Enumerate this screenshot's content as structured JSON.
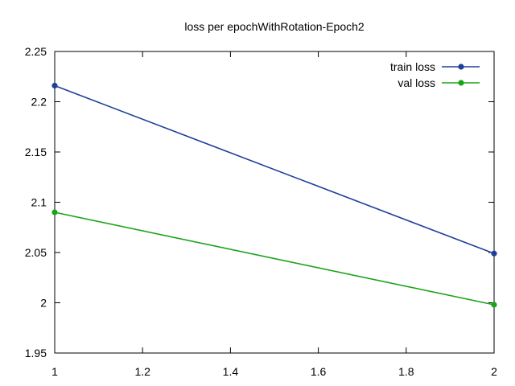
{
  "chart_data": {
    "type": "line",
    "title": "loss per epochWithRotation-Epoch2",
    "xlabel": "",
    "ylabel": "",
    "xlim": [
      1,
      2
    ],
    "ylim": [
      1.95,
      2.25
    ],
    "xticks": [
      1,
      1.2,
      1.4,
      1.6,
      1.8,
      2
    ],
    "xtick_labels": [
      "1",
      "1.2",
      "1.4",
      "1.6",
      "1.8",
      "2"
    ],
    "yticks": [
      1.95,
      2,
      2.05,
      2.1,
      2.15,
      2.2,
      2.25
    ],
    "ytick_labels": [
      "1.95",
      "2",
      "2.05",
      "2.1",
      "2.15",
      "2.2",
      "2.25"
    ],
    "grid": false,
    "legend_position": "top-right",
    "series": [
      {
        "name": "train loss",
        "color": "#1f3f99",
        "x": [
          1,
          2
        ],
        "y": [
          2.216,
          2.049
        ]
      },
      {
        "name": "val loss",
        "color": "#1aa31a",
        "x": [
          1,
          2
        ],
        "y": [
          2.09,
          1.998
        ]
      }
    ]
  }
}
